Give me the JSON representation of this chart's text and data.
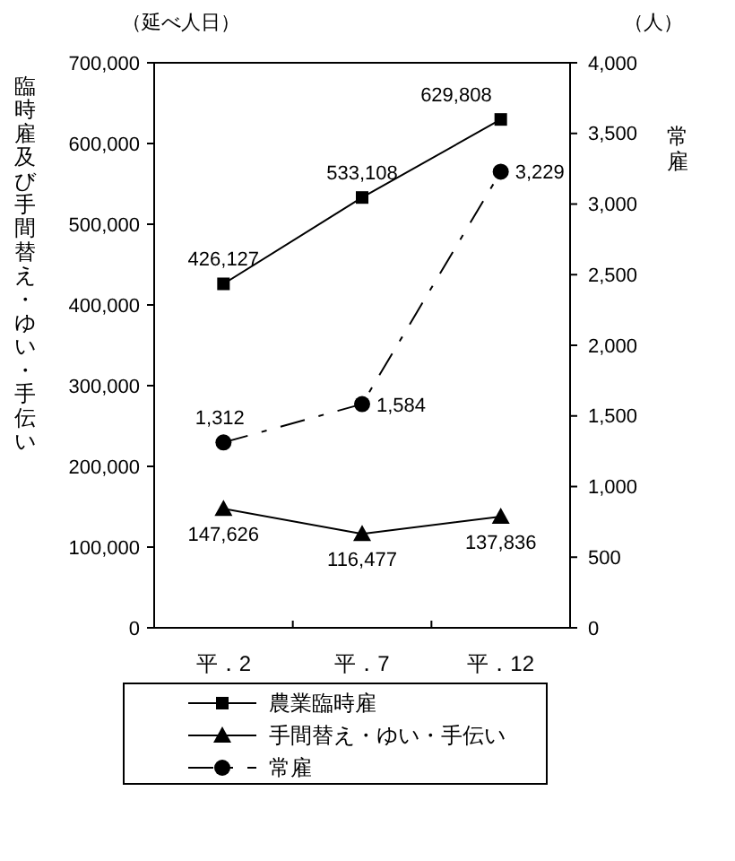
{
  "chart_data": {
    "type": "line",
    "ylabel": "臨時雇及び手間替え・ゆい・手伝い",
    "y2label": "常雇",
    "annotations": [
      "（延べ人日）",
      "（人）"
    ],
    "categories": [
      "平．2",
      "平．7",
      "平．12"
    ],
    "series": [
      {
        "name": "農業臨時雇",
        "color": "#000000",
        "values": [
          426127,
          533108,
          629808
        ],
        "marker": "square",
        "line_style": "solid",
        "value_labels": [
          "426,127",
          "533,108",
          "629,808"
        ]
      },
      {
        "name": "手間替え・ゆい・手伝い",
        "color": "#000000",
        "values": [
          147626,
          116477,
          137836
        ],
        "marker": "triangle",
        "line_style": "solid",
        "value_labels": [
          "147,626",
          "116,477",
          "137,836"
        ]
      },
      {
        "name": "常雇",
        "color": "#000000",
        "values": [
          1312,
          1584,
          3229
        ],
        "marker": "circle",
        "line_style": "dashed",
        "axis": "y2",
        "value_labels": [
          "1,312",
          "1,584",
          "3,229"
        ]
      }
    ],
    "ylim": [
      0,
      700000
    ],
    "yticks": [
      {
        "value": 0,
        "label": "0"
      },
      {
        "value": 100000,
        "label": "100,000"
      },
      {
        "value": 200000,
        "label": "200,000"
      },
      {
        "value": 300000,
        "label": "300,000"
      },
      {
        "value": 400000,
        "label": "400,000"
      },
      {
        "value": 500000,
        "label": "500,000"
      },
      {
        "value": 600000,
        "label": "600,000"
      },
      {
        "value": 700000,
        "label": "700,000"
      }
    ],
    "y2lim": [
      0,
      4000
    ],
    "y2ticks": [
      {
        "value": 0,
        "label": "0"
      },
      {
        "value": 500,
        "label": "500"
      },
      {
        "value": 1000,
        "label": "1,000"
      },
      {
        "value": 1500,
        "label": "1,500"
      },
      {
        "value": 2000,
        "label": "2,000"
      },
      {
        "value": 2500,
        "label": "2,500"
      },
      {
        "value": 3000,
        "label": "3,000"
      },
      {
        "value": 3500,
        "label": "3,500"
      },
      {
        "value": 4000,
        "label": "4,000"
      }
    ],
    "grid": false,
    "legend": "bottom"
  }
}
